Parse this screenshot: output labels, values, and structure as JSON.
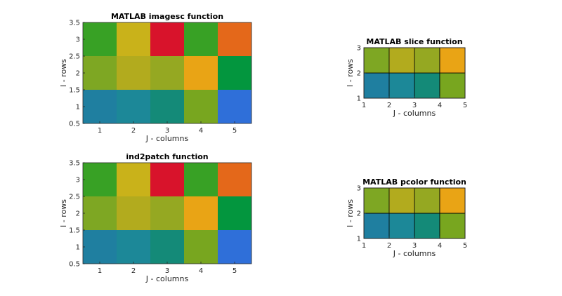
{
  "figure": {
    "background": "#ffffff"
  },
  "chart_data": [
    {
      "type": "heatmap",
      "title": "MATLAB imagesc function",
      "xlabel": "J - columns",
      "ylabel": "I - rows",
      "xlim": [
        0.5,
        5.5
      ],
      "ylim": [
        0.5,
        3.5
      ],
      "xticks": [
        "1",
        "2",
        "3",
        "4",
        "5"
      ],
      "yticks": [
        "0.5",
        "1",
        "1.5",
        "2",
        "2.5",
        "3",
        "3.5"
      ],
      "rows": [
        "1",
        "2",
        "3"
      ],
      "columns": [
        "1",
        "2",
        "3",
        "4",
        "5"
      ],
      "cell_colors": [
        [
          "#1f7fa0",
          "#1c8898",
          "#148a78",
          "#78a61f",
          "#2f6fd9"
        ],
        [
          "#7ea723",
          "#b2ab1e",
          "#95a822",
          "#e9a415",
          "#03963e"
        ],
        [
          "#38a125",
          "#c9b21a",
          "#d8132b",
          "#38a125",
          "#e4681a"
        ]
      ],
      "grid_lines": false
    },
    {
      "type": "heatmap",
      "title": "ind2patch function",
      "xlabel": "J - columns",
      "ylabel": "I - rows",
      "xlim": [
        0.5,
        5.5
      ],
      "ylim": [
        0.5,
        3.5
      ],
      "xticks": [
        "1",
        "2",
        "3",
        "4",
        "5"
      ],
      "yticks": [
        "0.5",
        "1",
        "1.5",
        "2",
        "2.5",
        "3",
        "3.5"
      ],
      "rows": [
        "1",
        "2",
        "3"
      ],
      "columns": [
        "1",
        "2",
        "3",
        "4",
        "5"
      ],
      "cell_colors": [
        [
          "#1f7fa0",
          "#1c8898",
          "#148a78",
          "#78a61f",
          "#2f6fd9"
        ],
        [
          "#7ea723",
          "#b2ab1e",
          "#95a822",
          "#e9a415",
          "#03963e"
        ],
        [
          "#38a125",
          "#c9b21a",
          "#d8132b",
          "#38a125",
          "#e4681a"
        ]
      ],
      "grid_lines": false
    },
    {
      "type": "heatmap",
      "title": "MATLAB slice function",
      "xlabel": "J - columns",
      "ylabel": "I - rows",
      "xlim": [
        1,
        5
      ],
      "ylim": [
        1,
        3
      ],
      "xticks": [
        "1",
        "2",
        "3",
        "4",
        "5"
      ],
      "yticks": [
        "1",
        "2",
        "3"
      ],
      "rows": [
        "1",
        "2"
      ],
      "columns": [
        "1",
        "2",
        "3",
        "4"
      ],
      "cell_colors": [
        [
          "#1f7fa0",
          "#1c8898",
          "#148a78",
          "#78a61f"
        ],
        [
          "#7ea723",
          "#b2ab1e",
          "#95a822",
          "#e9a415"
        ]
      ],
      "grid_lines": true
    },
    {
      "type": "heatmap",
      "title": "MATLAB pcolor function",
      "xlabel": "J - columns",
      "ylabel": "I - rows",
      "xlim": [
        1,
        5
      ],
      "ylim": [
        1,
        3
      ],
      "xticks": [
        "1",
        "2",
        "3",
        "4",
        "5"
      ],
      "yticks": [
        "1",
        "2",
        "3"
      ],
      "rows": [
        "1",
        "2"
      ],
      "columns": [
        "1",
        "2",
        "3",
        "4"
      ],
      "cell_colors": [
        [
          "#1f7fa0",
          "#1c8898",
          "#148a78",
          "#78a61f"
        ],
        [
          "#7ea723",
          "#b2ab1e",
          "#95a822",
          "#e9a415"
        ]
      ],
      "grid_lines": true
    }
  ]
}
